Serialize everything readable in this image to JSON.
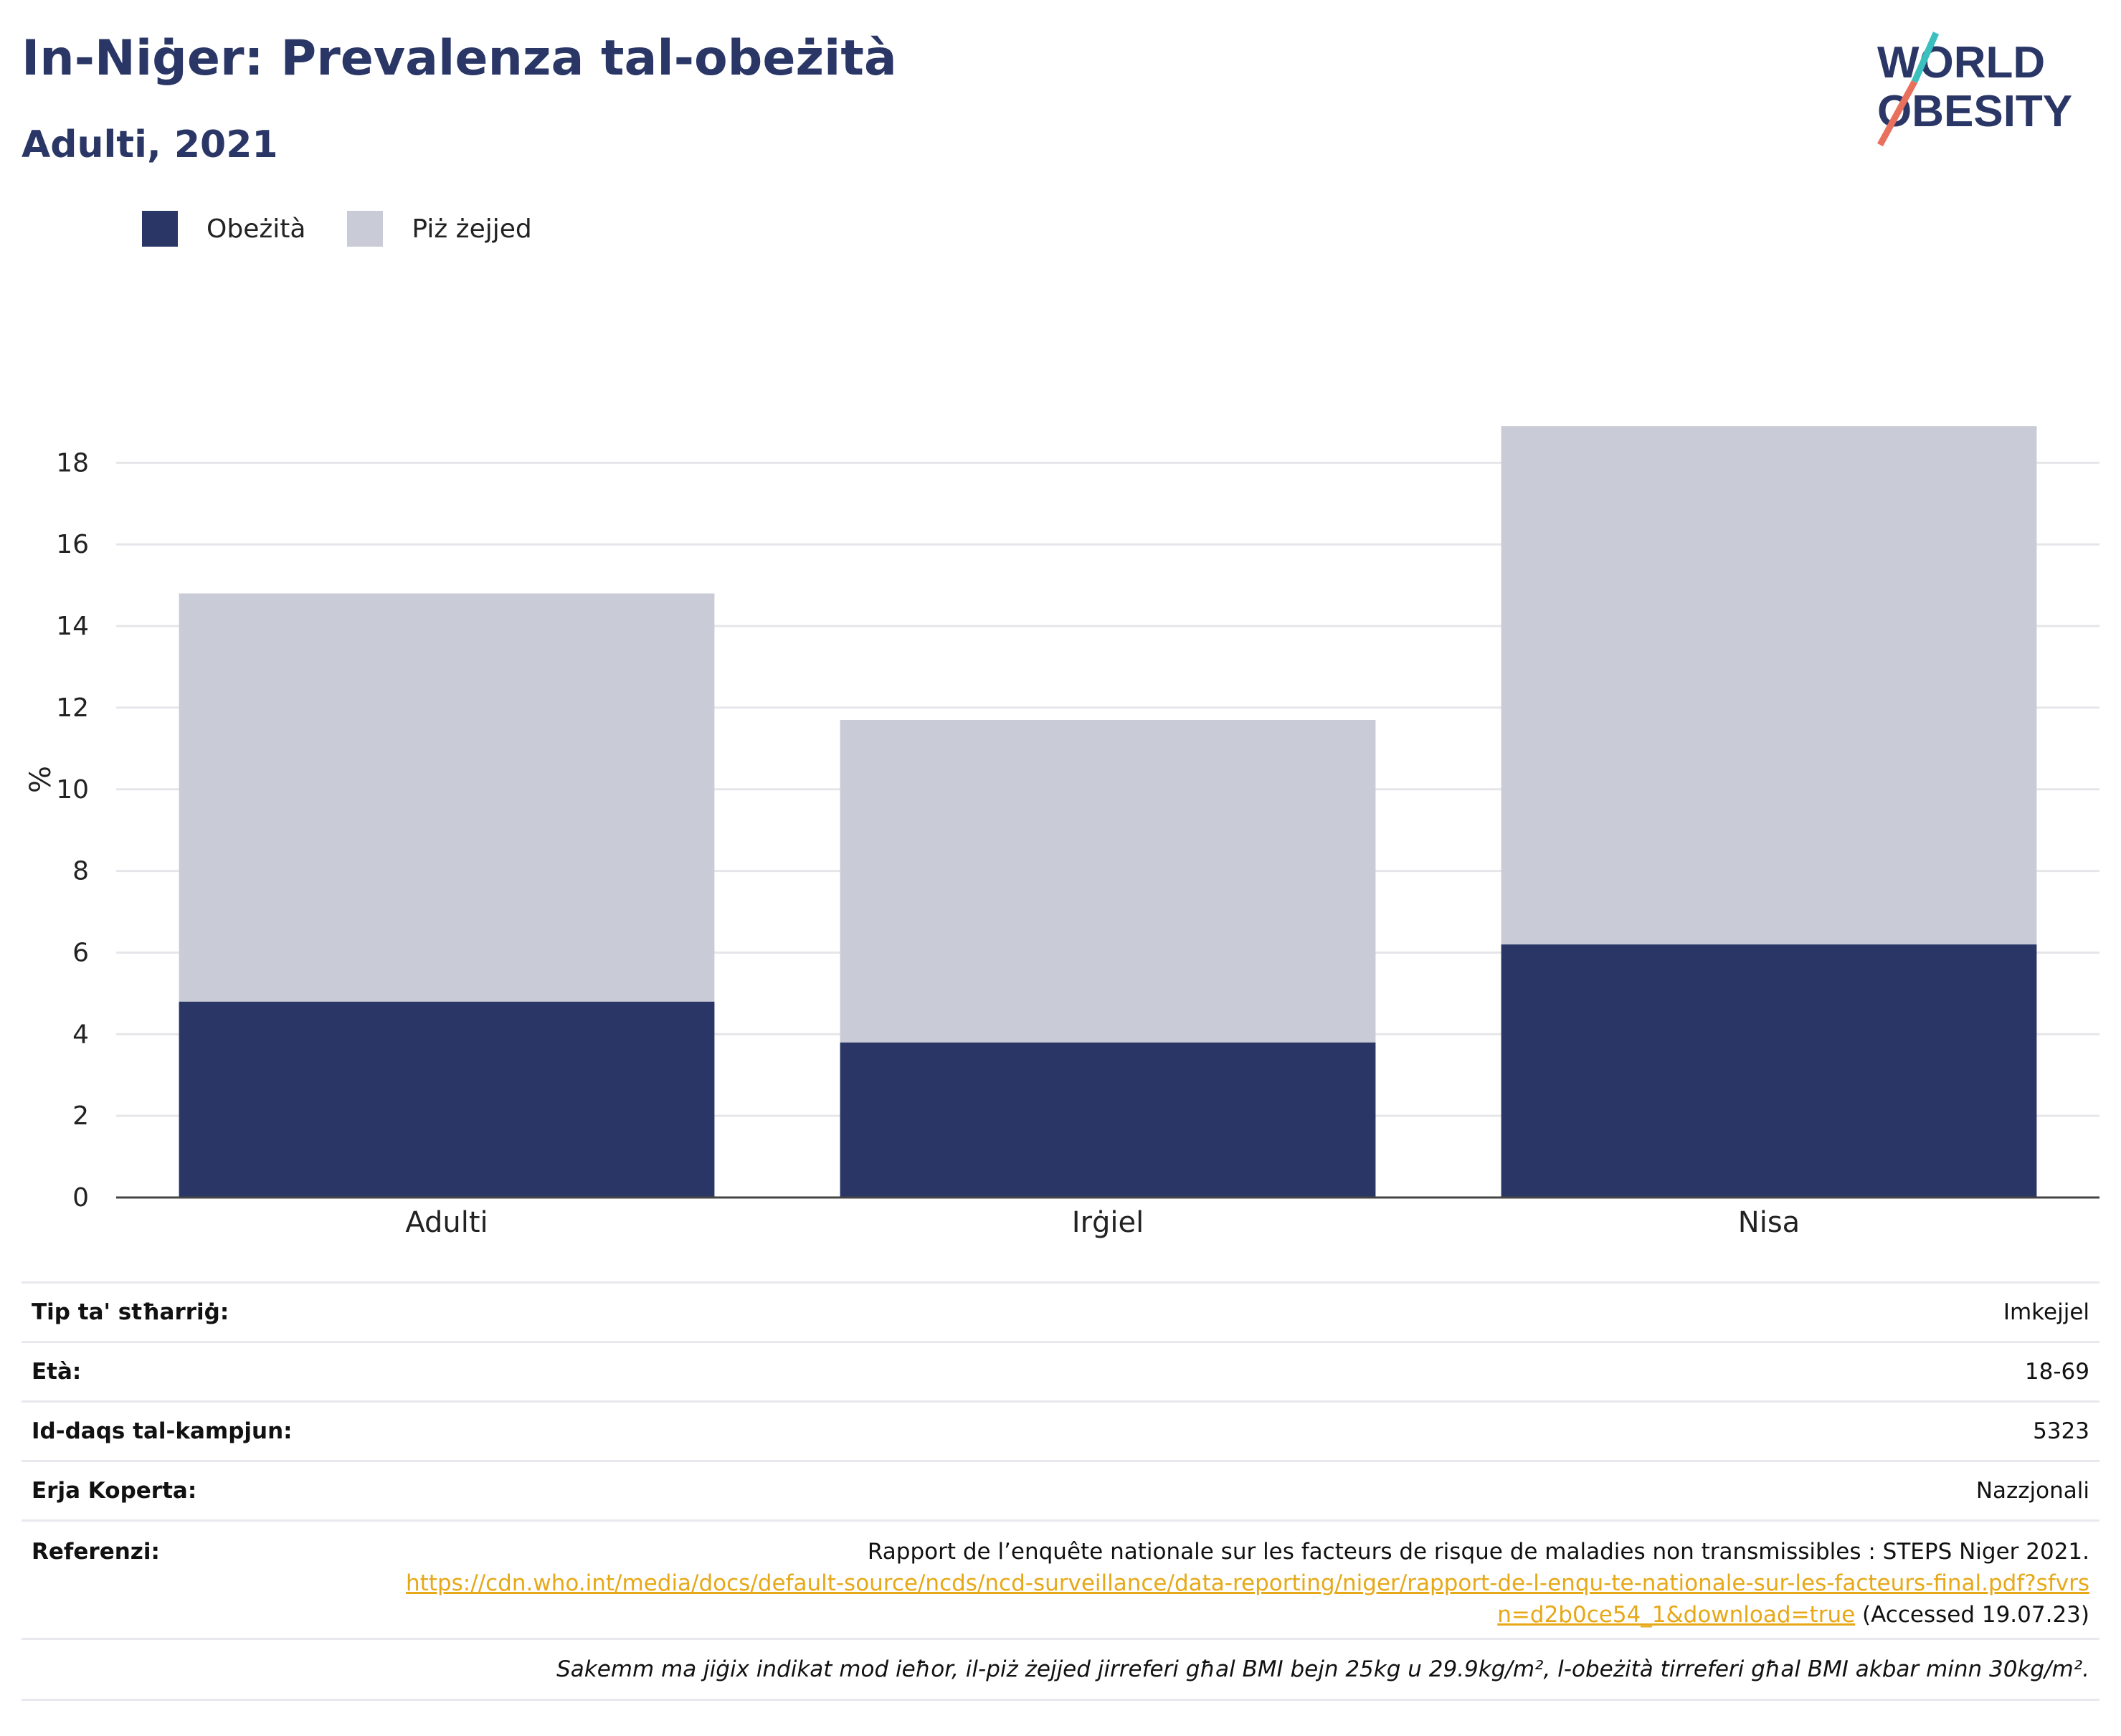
{
  "header": {
    "title": "In-Niġer: Prevalenza tal-obeżità",
    "subtitle": "Adulti, 2021"
  },
  "logo": {
    "line1": "WORLD",
    "line2": "OBESITY"
  },
  "legend": [
    {
      "label": "Obeżità",
      "color": "#2a3766"
    },
    {
      "label": "Piż żejjed",
      "color": "#c9cbd7"
    }
  ],
  "chart_data": {
    "type": "bar",
    "stacked": true,
    "categories": [
      "Adulti",
      "Irġiel",
      "Nisa"
    ],
    "series": [
      {
        "name": "Obeżità",
        "color": "#2a3766",
        "values": [
          4.8,
          3.8,
          6.2
        ]
      },
      {
        "name": "Piż żejjed",
        "color": "#c9cbd7",
        "values": [
          10.0,
          7.9,
          12.7
        ]
      }
    ],
    "ylabel": "%",
    "ylim": [
      0,
      19.5
    ],
    "yticks": [
      0,
      2,
      4,
      6,
      8,
      10,
      12,
      14,
      16,
      18
    ],
    "grid": true
  },
  "info": {
    "survey_type_label": "Tip ta' stħarriġ:",
    "survey_type_value": "Imkejjel",
    "age_label": "Età:",
    "age_value": "18-69",
    "sample_label": "Id-daqs tal-kampjun:",
    "sample_value": "5323",
    "area_label": "Erja Koperta:",
    "area_value": "Nazzjonali",
    "ref_label": "Referenzi:",
    "ref_text": "Rapport de l’enquête nationale sur les facteurs de risque de maladies non transmissibles : STEPS Niger 2021.",
    "ref_link": "https://cdn.who.int/media/docs/default-source/ncds/ncd-surveillance/data-reporting/niger/rapport-de-l-enqu-te-nationale-sur-les-facteurs-final.pdf?sfvrsn=d2b0ce54_1&download=true",
    "ref_accessed": "(Accessed 19.07.23)",
    "note": "Sakemm ma jiġix indikat mod ieħor, il-piż żejjed jirreferi għal BMI bejn 25kg u 29.9kg/m², l-obeżità tirreferi għal BMI akbar minn 30kg/m²."
  }
}
